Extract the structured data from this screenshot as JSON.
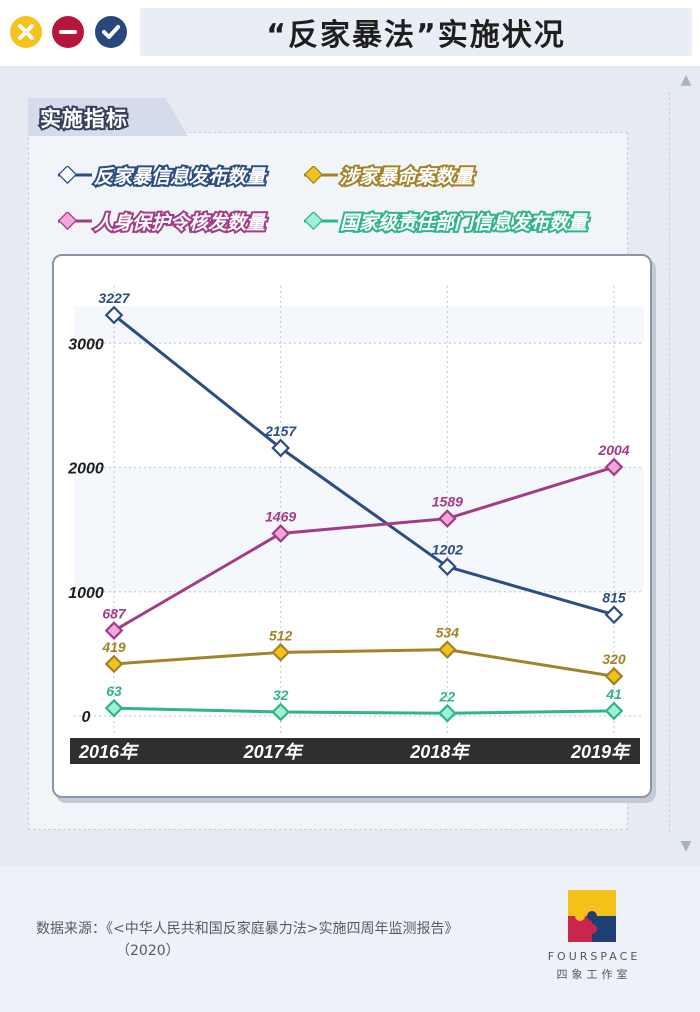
{
  "window": {
    "title": "“反家暴法”实施状况",
    "buttons": [
      {
        "name": "close-icon",
        "color": "#f6c21c"
      },
      {
        "name": "minimize-icon",
        "color": "#b4173b"
      },
      {
        "name": "check-icon",
        "color": "#27487c"
      }
    ]
  },
  "panel": {
    "tab_label": "实施指标"
  },
  "legend": [
    {
      "label": "反家暴信息发布数量",
      "color": "#2a4e82"
    },
    {
      "label": "涉家暴命案数量",
      "color": "#a28327"
    },
    {
      "label": "人身保护令核发数量",
      "color": "#a33c86"
    },
    {
      "label": "国家级责任部门信息发布数量",
      "color": "#2fb688"
    }
  ],
  "chart_data": {
    "type": "line",
    "categories": [
      "2016年",
      "2017年",
      "2018年",
      "2019年"
    ],
    "ylim": [
      0,
      3300
    ],
    "yticks": [
      0,
      1000,
      2000,
      3000
    ],
    "series": [
      {
        "name": "反家暴信息发布数量",
        "color": "#2a4e82",
        "values": [
          3227,
          2157,
          1202,
          815
        ]
      },
      {
        "name": "人身保护令核发数量",
        "color": "#a33c86",
        "values": [
          687,
          1469,
          1589,
          2004
        ]
      },
      {
        "name": "涉家暴命案数量",
        "color": "#a28327",
        "values": [
          419,
          512,
          534,
          320
        ]
      },
      {
        "name": "国家级责任部门信息发布数量",
        "color": "#2fb688",
        "values": [
          63,
          32,
          22,
          41
        ]
      }
    ],
    "grid": true
  },
  "footer": {
    "source_line1": "数据来源：《<中华人民共和国反家庭暴力法>实施四周年监测报告》",
    "source_line2": "（2020）",
    "logo_name": "FOURSPACE",
    "logo_sub": "四象工作室"
  }
}
